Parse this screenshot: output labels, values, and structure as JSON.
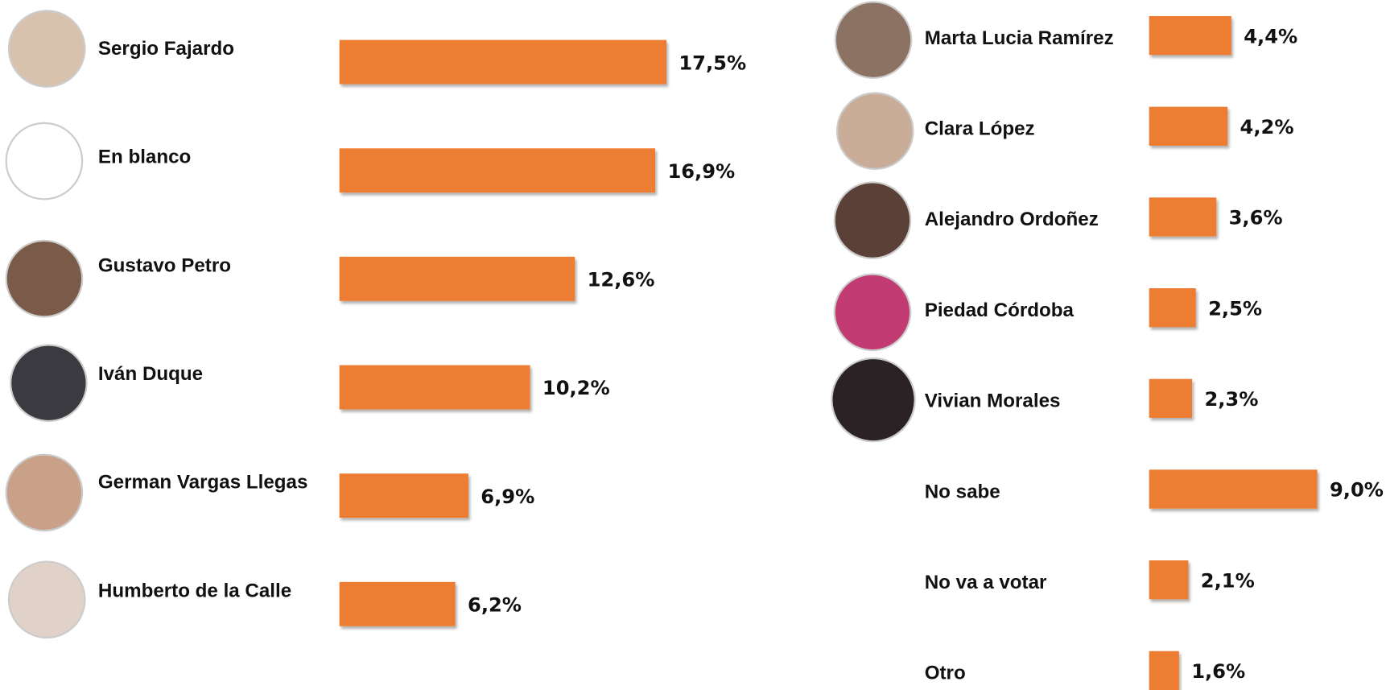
{
  "chart_data": [
    {
      "type": "bar",
      "orientation": "horizontal",
      "color": "#ed7d31",
      "categories": [
        "Sergio Fajardo",
        "En blanco",
        "Gustavo Petro",
        "Iván Duque",
        "German Vargas Llegas",
        "Humberto de la Calle"
      ],
      "values": [
        17.5,
        16.9,
        12.6,
        10.2,
        6.9,
        6.2
      ],
      "value_labels": [
        "17,5%",
        "16,9%",
        "12,6%",
        "10,2%",
        "6,9%",
        "6,2%"
      ]
    },
    {
      "type": "bar",
      "orientation": "horizontal",
      "color": "#ed7d31",
      "categories": [
        "Marta Lucia Ramírez",
        "Clara López",
        "Alejandro Ordoñez",
        "Piedad Córdoba",
        "Vivian Morales",
        "No sabe",
        "No va a votar",
        "Otro"
      ],
      "values": [
        4.4,
        4.2,
        3.6,
        2.5,
        2.3,
        9.0,
        2.1,
        1.6
      ],
      "value_labels": [
        "4,4%",
        "4,2%",
        "3,6%",
        "2,5%",
        "2,3%",
        "9,0%",
        "2,1%",
        "1,6%"
      ]
    }
  ]
}
